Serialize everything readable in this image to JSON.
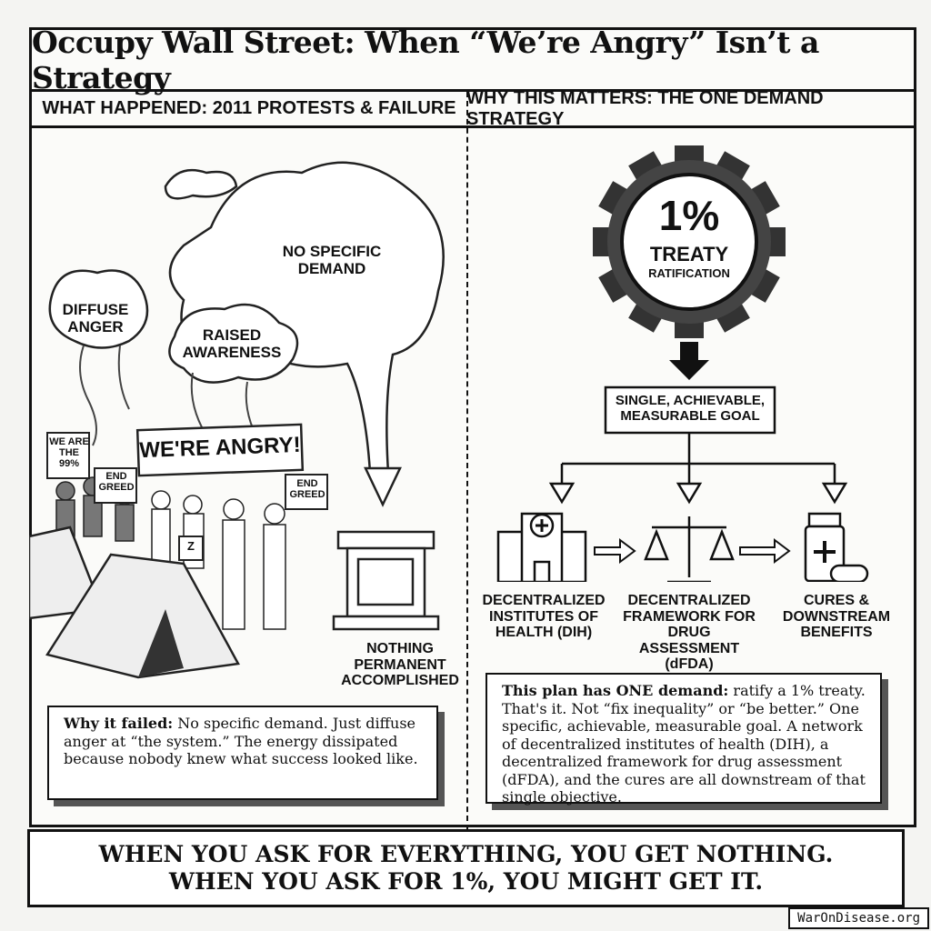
{
  "title": "Occupy Wall Street: When “We’re Angry” Isn’t a Strategy",
  "left": {
    "header": "WHAT HAPPENED: 2011 PROTESTS & FAILURE",
    "clouds": [
      "NO SPECIFIC DEMAND",
      "DIFFUSE ANGER",
      "RAISED AWARENESS"
    ],
    "signs": {
      "banner": "WE'RE ANGRY!",
      "sign1": "WE ARE THE 99%",
      "sign2": "END GREED",
      "sign3": "END GREED",
      "sign4": "Z"
    },
    "pedestal_label": "NOTHING PERMANENT ACCOMPLISHED",
    "box_bold": "Why it failed:",
    "box_text": " No specific demand. Just diffuse anger at “the system.” The energy dissipated because nobody knew what success looked like."
  },
  "right": {
    "header": "WHY THIS MATTERS: THE ONE DEMAND STRATEGY",
    "gear": {
      "big": "1%",
      "line1": "TREATY",
      "line2": "RATIFICATION"
    },
    "goal": "SINGLE, ACHIEVABLE, MEASURABLE GOAL",
    "nodes": [
      {
        "label": "DECENTRALIZED INSTITUTES OF HEALTH (DIH)",
        "icon": "hospital-icon"
      },
      {
        "label": "DECENTRALIZED FRAMEWORK FOR DRUG ASSESSMENT (dFDA)",
        "icon": "scales-icon"
      },
      {
        "label": "CURES & DOWNSTREAM BENEFITS",
        "icon": "medicine-icon"
      }
    ],
    "box_bold": "This plan has ONE demand:",
    "box_text": " ratify a 1% treaty. That's it. Not “fix inequality” or “be better.” One specific, achievable, measurable goal. A network of decentralized institutes of health (DIH), a decentralized framework for drug assessment (dFDA), and the cures are all downstream of that single objective."
  },
  "banner": {
    "line1": "WHEN YOU ASK FOR EVERYTHING, YOU GET NOTHING.",
    "line2": "WHEN YOU ASK FOR 1%, YOU MIGHT GET IT."
  },
  "watermark": "WarOnDisease.org"
}
